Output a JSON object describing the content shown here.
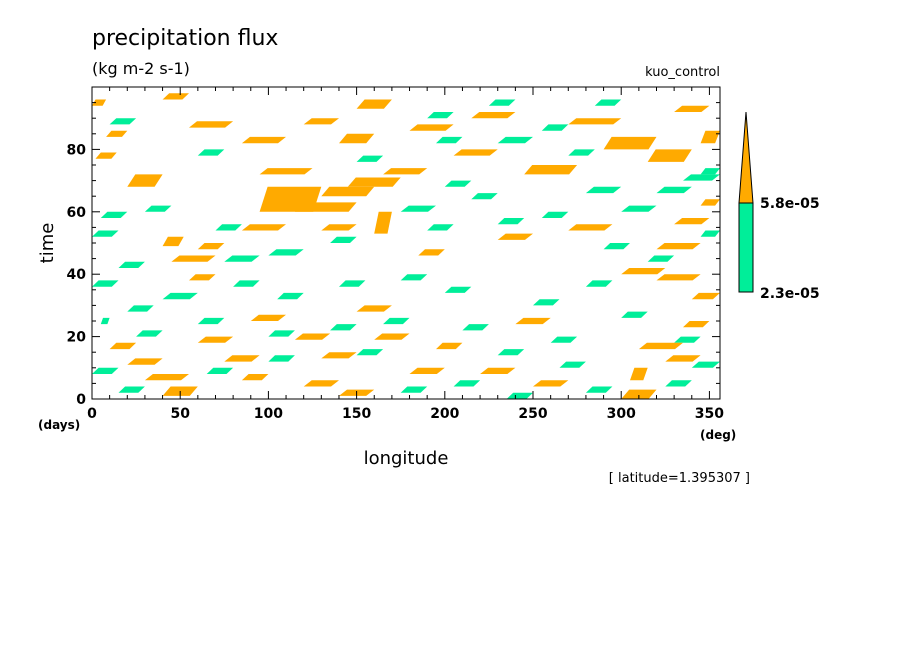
{
  "chart_data": {
    "type": "heatmap",
    "title": "precipitation flux",
    "units": "(kg m-2 s-1)",
    "experiment": "kuo_control",
    "xlabel": "longitude",
    "ylabel": "time",
    "x_unit": "(deg)",
    "y_unit": "(days)",
    "xlim": [
      0,
      356
    ],
    "ylim": [
      0,
      100
    ],
    "xticks": [
      "0",
      "50",
      "100",
      "150",
      "200",
      "250",
      "300",
      "350"
    ],
    "xtick_values": [
      0,
      50,
      100,
      150,
      200,
      250,
      300,
      350
    ],
    "yticks": [
      "0",
      "20",
      "40",
      "60",
      "80"
    ],
    "ytick_values": [
      0,
      20,
      40,
      60,
      80
    ],
    "footnote": "[ latitude=1.395307 ]",
    "colorbar": {
      "levels": [
        "2.3e-05",
        "5.8e-05"
      ],
      "level_values": [
        2.3e-05,
        5.8e-05
      ],
      "colors": {
        "low": "#00ee99",
        "high": "#ffaa00"
      }
    },
    "regions_high": [
      [
        0,
        96,
        8,
        94
      ],
      [
        8,
        86,
        20,
        84
      ],
      [
        2,
        79,
        14,
        77
      ],
      [
        20,
        72,
        40,
        68
      ],
      [
        40,
        98,
        55,
        96
      ],
      [
        55,
        89,
        80,
        87
      ],
      [
        85,
        84,
        110,
        82
      ],
      [
        95,
        74,
        125,
        72
      ],
      [
        120,
        90,
        140,
        88
      ],
      [
        140,
        85,
        160,
        82
      ],
      [
        150,
        96,
        170,
        93
      ],
      [
        165,
        74,
        190,
        72
      ],
      [
        180,
        88,
        205,
        86
      ],
      [
        205,
        80,
        230,
        78
      ],
      [
        215,
        92,
        240,
        90
      ],
      [
        245,
        75,
        275,
        72
      ],
      [
        270,
        90,
        300,
        88
      ],
      [
        290,
        84,
        320,
        80
      ],
      [
        315,
        80,
        340,
        76
      ],
      [
        330,
        94,
        350,
        92
      ],
      [
        345,
        86,
        356,
        82
      ],
      [
        40,
        52,
        52,
        49
      ],
      [
        45,
        46,
        70,
        44
      ],
      [
        60,
        50,
        75,
        48
      ],
      [
        55,
        40,
        70,
        38
      ],
      [
        95,
        68,
        130,
        60
      ],
      [
        115,
        63,
        150,
        60
      ],
      [
        130,
        68,
        160,
        65
      ],
      [
        145,
        71,
        175,
        68
      ],
      [
        160,
        60,
        170,
        53
      ],
      [
        85,
        56,
        110,
        54
      ],
      [
        130,
        56,
        150,
        54
      ],
      [
        185,
        48,
        200,
        46
      ],
      [
        230,
        53,
        250,
        51
      ],
      [
        270,
        56,
        295,
        54
      ],
      [
        320,
        50,
        345,
        48
      ],
      [
        330,
        58,
        350,
        56
      ],
      [
        345,
        64,
        356,
        62
      ],
      [
        90,
        27,
        110,
        25
      ],
      [
        115,
        21,
        135,
        19
      ],
      [
        130,
        15,
        150,
        13
      ],
      [
        150,
        30,
        170,
        28
      ],
      [
        160,
        21,
        180,
        19
      ],
      [
        195,
        18,
        210,
        16
      ],
      [
        180,
        10,
        200,
        8
      ],
      [
        10,
        18,
        25,
        16
      ],
      [
        20,
        13,
        40,
        11
      ],
      [
        30,
        8,
        55,
        6
      ],
      [
        40,
        4,
        60,
        1
      ],
      [
        60,
        20,
        80,
        18
      ],
      [
        75,
        14,
        95,
        12
      ],
      [
        85,
        8,
        100,
        6
      ],
      [
        120,
        6,
        140,
        4
      ],
      [
        140,
        3,
        160,
        1
      ],
      [
        220,
        10,
        240,
        8
      ],
      [
        250,
        6,
        270,
        4
      ],
      [
        300,
        3,
        320,
        0
      ],
      [
        305,
        10,
        315,
        6
      ],
      [
        310,
        18,
        335,
        16
      ],
      [
        325,
        14,
        345,
        12
      ],
      [
        335,
        25,
        350,
        23
      ],
      [
        320,
        40,
        345,
        38
      ],
      [
        300,
        42,
        325,
        40
      ],
      [
        340,
        34,
        356,
        32
      ],
      [
        240,
        26,
        260,
        24
      ]
    ],
    "regions_low": [
      [
        5,
        60,
        20,
        58
      ],
      [
        0,
        54,
        15,
        52
      ],
      [
        15,
        44,
        30,
        42
      ],
      [
        30,
        62,
        45,
        60
      ],
      [
        70,
        56,
        85,
        54
      ],
      [
        75,
        46,
        95,
        44
      ],
      [
        100,
        48,
        120,
        46
      ],
      [
        135,
        52,
        150,
        50
      ],
      [
        175,
        62,
        195,
        60
      ],
      [
        190,
        56,
        205,
        54
      ],
      [
        200,
        70,
        215,
        68
      ],
      [
        215,
        66,
        230,
        64
      ],
      [
        230,
        58,
        245,
        56
      ],
      [
        255,
        60,
        270,
        58
      ],
      [
        280,
        68,
        300,
        66
      ],
      [
        300,
        62,
        320,
        60
      ],
      [
        320,
        68,
        340,
        66
      ],
      [
        335,
        72,
        356,
        70
      ],
      [
        225,
        96,
        240,
        94
      ],
      [
        255,
        88,
        270,
        86
      ],
      [
        285,
        96,
        300,
        94
      ],
      [
        195,
        84,
        210,
        82
      ],
      [
        230,
        84,
        250,
        82
      ],
      [
        270,
        80,
        285,
        78
      ],
      [
        0,
        38,
        15,
        36
      ],
      [
        20,
        30,
        35,
        28
      ],
      [
        40,
        34,
        60,
        32
      ],
      [
        80,
        38,
        95,
        36
      ],
      [
        105,
        34,
        120,
        32
      ],
      [
        140,
        38,
        155,
        36
      ],
      [
        175,
        40,
        190,
        38
      ],
      [
        200,
        36,
        215,
        34
      ],
      [
        250,
        32,
        265,
        30
      ],
      [
        280,
        38,
        295,
        36
      ],
      [
        300,
        28,
        315,
        26
      ],
      [
        330,
        20,
        345,
        18
      ],
      [
        260,
        20,
        275,
        18
      ],
      [
        230,
        16,
        245,
        14
      ],
      [
        210,
        24,
        225,
        22
      ],
      [
        165,
        26,
        180,
        24
      ],
      [
        135,
        24,
        150,
        22
      ],
      [
        100,
        22,
        115,
        20
      ],
      [
        60,
        26,
        75,
        24
      ],
      [
        25,
        22,
        40,
        20
      ],
      [
        5,
        26,
        10,
        24
      ],
      [
        0,
        10,
        15,
        8
      ],
      [
        15,
        4,
        30,
        2
      ],
      [
        65,
        10,
        80,
        8
      ],
      [
        100,
        14,
        115,
        12
      ],
      [
        150,
        16,
        165,
        14
      ],
      [
        175,
        4,
        190,
        2
      ],
      [
        205,
        6,
        220,
        4
      ],
      [
        235,
        2,
        250,
        0
      ],
      [
        265,
        12,
        280,
        10
      ],
      [
        280,
        4,
        295,
        2
      ],
      [
        325,
        6,
        340,
        4
      ],
      [
        340,
        12,
        356,
        10
      ],
      [
        315,
        46,
        330,
        44
      ],
      [
        290,
        50,
        305,
        48
      ],
      [
        345,
        54,
        356,
        52
      ],
      [
        345,
        74,
        356,
        72
      ],
      [
        10,
        90,
        25,
        88
      ],
      [
        60,
        80,
        75,
        78
      ],
      [
        150,
        78,
        165,
        76
      ],
      [
        190,
        92,
        205,
        90
      ]
    ]
  }
}
